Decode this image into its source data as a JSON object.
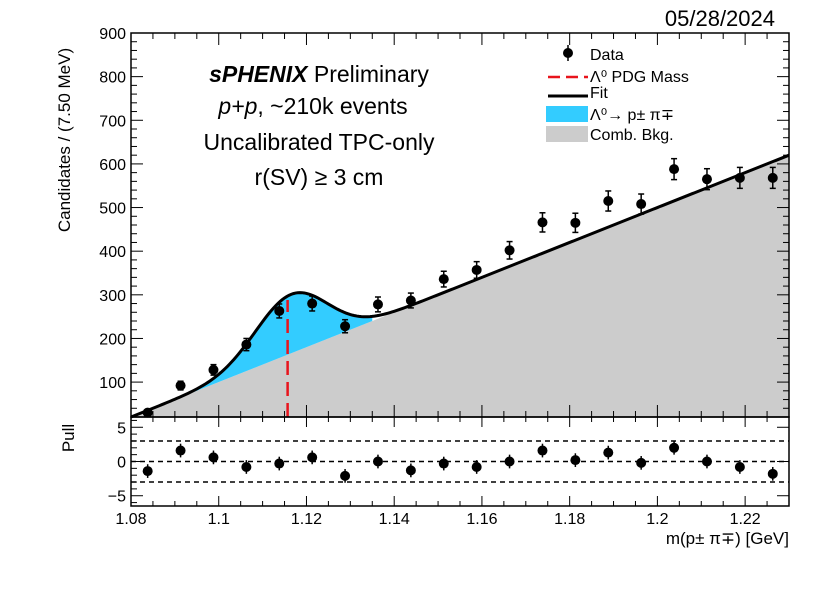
{
  "date": "05/28/2024",
  "chart_data": {
    "type": "scatter",
    "title": "sPHENIX Preliminary",
    "annotations": {
      "brand": "sPHENIX",
      "preliminary": "Preliminary",
      "system_italic": "p+p",
      "events": ", ~210k events",
      "calib": "Uncalibrated TPC-only",
      "cut": "r(SV) ≥ 3 cm"
    },
    "xlabel": "m(p± π∓) [GeV]",
    "ylabel": "Candidates / (7.50 MeV)",
    "pull_ylabel": "Pull",
    "xlim": [
      1.08,
      1.23
    ],
    "ylim": [
      20,
      900
    ],
    "pull_ylim": [
      -6.5,
      6.5
    ],
    "x_ticks": [
      1.08,
      1.1,
      1.12,
      1.14,
      1.16,
      1.18,
      1.2,
      1.22
    ],
    "x_tick_labels": [
      "1.08",
      "1.1",
      "1.12",
      "1.14",
      "1.16",
      "1.18",
      "1.2",
      "1.22"
    ],
    "y_ticks": [
      100,
      200,
      300,
      400,
      500,
      600,
      700,
      800,
      900
    ],
    "y_tick_labels": [
      "100",
      "200",
      "300",
      "400",
      "500",
      "600",
      "700",
      "800",
      "900"
    ],
    "pull_ticks": [
      -5,
      0,
      5
    ],
    "pull_tick_labels": [
      "−5",
      "0",
      "5"
    ],
    "pull_reference_lines": [
      -3,
      0,
      3
    ],
    "pdg_mass": 1.1157,
    "legend": [
      {
        "key": "data",
        "label": "Data"
      },
      {
        "key": "pdg",
        "label": "Λ⁰ PDG Mass"
      },
      {
        "key": "fit",
        "label": "Fit"
      },
      {
        "key": "signal",
        "label": "Λ⁰→ p± π∓"
      },
      {
        "key": "bkg",
        "label": "Comb. Bkg."
      }
    ],
    "colors": {
      "data": "#000000",
      "pdg": "#e8141c",
      "fit": "#000000",
      "signal": "#33ccff",
      "bkg": "#cccccc"
    },
    "background": {
      "intercept_x": 1.08,
      "intercept_y": 20,
      "slope_per_gev": 4000
    },
    "signal": {
      "mean": 1.1165,
      "sigma": 0.0082,
      "amplitude": 135
    },
    "series": [
      {
        "name": "Data",
        "x": [
          1.0838,
          1.0913,
          1.0988,
          1.1063,
          1.1138,
          1.1213,
          1.1288,
          1.1363,
          1.1438,
          1.1513,
          1.1588,
          1.1663,
          1.1738,
          1.1813,
          1.1888,
          1.1963,
          1.2038,
          1.2113,
          1.2188,
          1.2263
        ],
        "y": [
          30,
          92,
          128,
          186,
          263,
          280,
          228,
          278,
          287,
          336,
          357,
          402,
          466,
          465,
          515,
          508,
          588,
          565,
          568,
          568
        ],
        "yerr": [
          6,
          10,
          12,
          14,
          16,
          17,
          15,
          17,
          17,
          18,
          19,
          20,
          22,
          22,
          23,
          23,
          24,
          24,
          24,
          24
        ],
        "pull": [
          -1.4,
          1.6,
          0.6,
          -0.8,
          -0.3,
          0.6,
          -2.1,
          0.0,
          -1.3,
          -0.3,
          -0.8,
          0.0,
          1.6,
          0.2,
          1.3,
          -0.2,
          2.0,
          0.0,
          -0.8,
          -1.8
        ],
        "pull_err": [
          1,
          1,
          1,
          1,
          1,
          1,
          1,
          1,
          1,
          1,
          1,
          1,
          1,
          1,
          1,
          1,
          1,
          1,
          1,
          1
        ]
      }
    ]
  }
}
